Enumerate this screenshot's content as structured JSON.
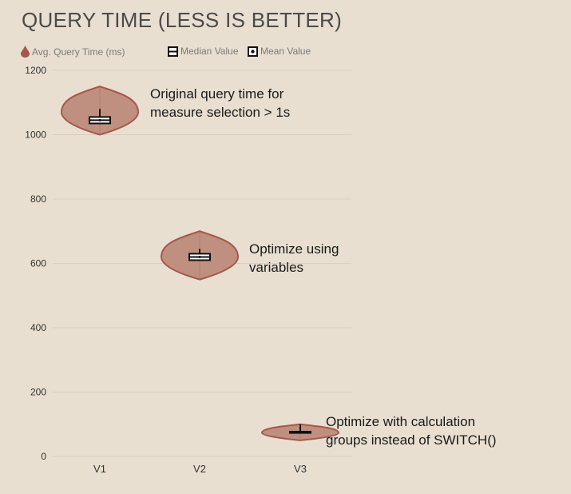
{
  "chart_data": {
    "type": "violin",
    "title": "QUERY TIME (LESS IS BETTER)",
    "legend": {
      "series_label": "Avg. Query Time (ms)",
      "median_label": "Median Value",
      "mean_label": "Mean Value",
      "placement": "top-left"
    },
    "categories": [
      "V1",
      "V2",
      "V3"
    ],
    "ylim": [
      0,
      1200
    ],
    "yticks": [
      0,
      200,
      400,
      600,
      800,
      1000,
      1200
    ],
    "grid": true,
    "series": [
      {
        "category": "V1",
        "min": 1000,
        "max": 1150,
        "median": 1045,
        "mean": 1045,
        "q1": 1035,
        "q3": 1055,
        "whisker_top": 1080
      },
      {
        "category": "V2",
        "min": 550,
        "max": 700,
        "median": 620,
        "mean": 620,
        "q1": 610,
        "q3": 630,
        "whisker_top": 645
      },
      {
        "category": "V3",
        "min": 50,
        "max": 100,
        "median": 75,
        "mean": 75,
        "q1": 73,
        "q3": 77,
        "whisker_top": 100
      }
    ],
    "annotations": [
      {
        "lines": [
          "Original query time for",
          "measure selection > 1s"
        ]
      },
      {
        "lines": [
          "Optimize using",
          "variables"
        ]
      },
      {
        "lines": [
          "Optimize with calculation",
          "groups instead of SWITCH()"
        ]
      }
    ],
    "colors": {
      "violin_fill": "#bf8f80",
      "violin_stroke": "#a5584a",
      "box_stroke": "#111111",
      "grid": "#d9cfbf",
      "tick_text": "#333333"
    }
  }
}
